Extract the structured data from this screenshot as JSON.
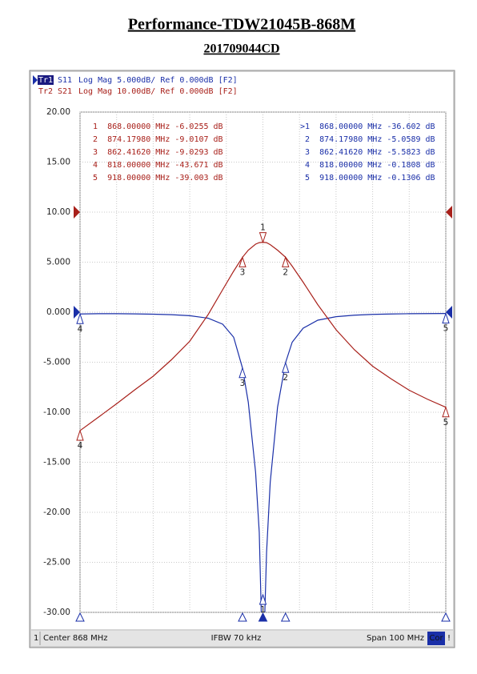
{
  "chart_data": {
    "type": "line",
    "title": "Performance-TDW21045B-868M",
    "subtitle": "201709044CD",
    "xlim": [
      818,
      918
    ],
    "xticks": [
      818,
      828,
      838,
      848,
      858,
      868,
      878,
      888,
      898,
      908,
      918
    ],
    "ylim": [
      -30,
      20
    ],
    "yticks": [
      {
        "value": 20,
        "label": "20.00"
      },
      {
        "value": 15,
        "label": "15.00"
      },
      {
        "value": 10,
        "label": "10.00"
      },
      {
        "value": 5,
        "label": "5.000"
      },
      {
        "value": 0,
        "label": "0.000"
      },
      {
        "value": -5,
        "label": "-5.000"
      },
      {
        "value": -10,
        "label": "-10.00"
      },
      {
        "value": -15,
        "label": "-15.00"
      },
      {
        "value": -20,
        "label": "-20.00"
      },
      {
        "value": -25,
        "label": "-25.00"
      },
      {
        "value": -30,
        "label": "-30.00"
      }
    ],
    "y2lim": [
      -80,
      20
    ],
    "grid": true,
    "x": [
      818,
      823,
      828,
      833,
      838,
      843,
      848,
      853,
      857,
      860,
      862.4162,
      864,
      866,
      867,
      868,
      869,
      870,
      872,
      874.1798,
      876,
      879,
      883,
      888,
      893,
      898,
      903,
      908,
      913,
      918
    ],
    "series": [
      {
        "trace": "Tr1",
        "name": "S11",
        "format": "Log Mag 5.000dB/ Ref 0.000dB [F2]",
        "color": "#1a2fa8",
        "values": [
          -0.1808,
          -0.15,
          -0.15,
          -0.17,
          -0.2,
          -0.25,
          -0.35,
          -0.6,
          -1.2,
          -2.5,
          -5.5823,
          -9,
          -16,
          -22,
          -36.602,
          -24,
          -17,
          -9.5,
          -5.0589,
          -3,
          -1.6,
          -0.8,
          -0.45,
          -0.3,
          -0.22,
          -0.18,
          -0.15,
          -0.14,
          -0.1306
        ],
        "markers": [
          {
            "label": "1",
            "x": 868
          },
          {
            "label": "2",
            "x": 874.1798
          },
          {
            "label": "3",
            "x": 862.4162
          },
          {
            "label": "4",
            "x": 818
          },
          {
            "label": "5",
            "x": 918
          }
        ],
        "readouts": [
          ">1  868.00000 MHz -36.602 dB",
          " 2  874.17980 MHz -5.0589 dB",
          " 3  862.41620 MHz -5.5823 dB",
          " 4  818.00000 MHz -0.1808 dB",
          " 5  918.00000 MHz -0.1306 dB"
        ]
      },
      {
        "trace": "Tr2",
        "name": "S21",
        "format": "Log Mag 10.00dB/ Ref 0.000dB [F2]",
        "color": "#a8201a",
        "axis": "y2",
        "values": [
          -43.671,
          -41,
          -38.3,
          -35.5,
          -32.8,
          -29.5,
          -25.8,
          -20.5,
          -15.5,
          -11.8,
          -9.0293,
          -7.6,
          -6.4,
          -6.1,
          -6.0255,
          -6.1,
          -6.5,
          -7.6,
          -9.0107,
          -10.8,
          -14,
          -18.5,
          -23.5,
          -27.5,
          -30.8,
          -33.3,
          -35.6,
          -37.4,
          -39.003
        ],
        "markers": [
          {
            "label": "1",
            "x": 868
          },
          {
            "label": "2",
            "x": 874.1798
          },
          {
            "label": "3",
            "x": 862.4162
          },
          {
            "label": "4",
            "x": 818
          },
          {
            "label": "5",
            "x": 918
          }
        ],
        "readouts": [
          " 1  868.00000 MHz -6.0255 dB",
          " 2  874.17980 MHz -9.0107 dB",
          " 3  862.41620 MHz -9.0293 dB",
          " 4  818.00000 MHz -43.671 dB",
          " 5  918.00000 MHz -39.003 dB"
        ]
      }
    ],
    "footer": {
      "channel": "1",
      "center": "Center 868 MHz",
      "ifbw": "IFBW 70 kHz",
      "span": "Span 100 MHz",
      "correction": "Cor",
      "status": "!"
    }
  }
}
